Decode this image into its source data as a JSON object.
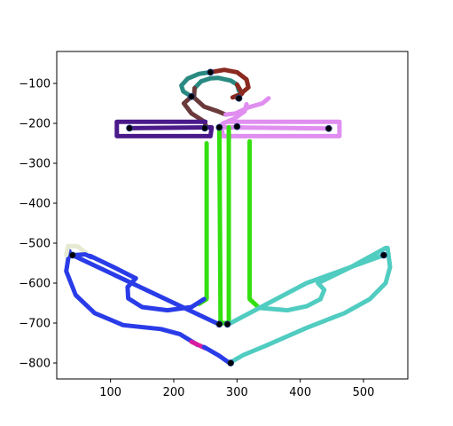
{
  "chart_data": {
    "type": "line",
    "title": "",
    "xlabel": "",
    "ylabel": "",
    "xlim": [
      15,
      570
    ],
    "ylim": [
      -840,
      -20
    ],
    "x_ticks": [
      100,
      200,
      300,
      400,
      500
    ],
    "x_tick_labels": [
      "100",
      "200",
      "300",
      "400",
      "500"
    ],
    "y_ticks": [
      -100,
      -200,
      -300,
      -400,
      -500,
      -600,
      -700,
      -800
    ],
    "y_tick_labels": [
      "−100",
      "−200",
      "−300",
      "−400",
      "−500",
      "−600",
      "−700",
      "−800"
    ],
    "grid": false,
    "legend": "none",
    "series": [
      {
        "color": "#2a8a82",
        "points": [
          [
            258,
            -72
          ],
          [
            240,
            -76
          ],
          [
            222,
            -88
          ],
          [
            212,
            -105
          ],
          [
            215,
            -120
          ],
          [
            228,
            -133
          ]
        ]
      },
      {
        "color": "#8b2a20",
        "points": [
          [
            258,
            -72
          ],
          [
            280,
            -66
          ],
          [
            300,
            -72
          ],
          [
            315,
            -90
          ],
          [
            318,
            -110
          ],
          [
            305,
            -127
          ],
          [
            293,
            -135
          ]
        ]
      },
      {
        "color": "#2a8a82",
        "points": [
          [
            233,
            -112
          ],
          [
            243,
            -95
          ],
          [
            258,
            -87
          ],
          [
            270,
            -86
          ],
          [
            290,
            -93
          ],
          [
            300,
            -103
          ],
          [
            303,
            -118
          ]
        ]
      },
      {
        "color": "#8b2a20",
        "points": [
          [
            300,
            -103
          ],
          [
            308,
            -125
          ],
          [
            300,
            -137
          ]
        ]
      },
      {
        "color": "#6b3a3a",
        "points": [
          [
            228,
            -133
          ],
          [
            216,
            -150
          ],
          [
            228,
            -175
          ],
          [
            248,
            -195
          ],
          [
            252,
            -210
          ]
        ]
      },
      {
        "color": "#6b3a3a",
        "points": [
          [
            233,
            -112
          ],
          [
            232,
            -135
          ],
          [
            248,
            -158
          ],
          [
            270,
            -170
          ],
          [
            282,
            -178
          ]
        ]
      },
      {
        "color": "#e08ef0",
        "points": [
          [
            282,
            -178
          ],
          [
            298,
            -175
          ],
          [
            318,
            -160
          ],
          [
            340,
            -150
          ],
          [
            350,
            -137
          ]
        ]
      },
      {
        "color": "#e08ef0",
        "points": [
          [
            315,
            -152
          ],
          [
            312,
            -170
          ],
          [
            296,
            -188
          ],
          [
            278,
            -200
          ],
          [
            270,
            -212
          ]
        ]
      },
      {
        "color": "#4a1a8a",
        "points": [
          [
            250,
            -196
          ],
          [
            110,
            -196
          ],
          [
            110,
            -232
          ],
          [
            258,
            -232
          ],
          [
            260,
            -210
          ],
          [
            130,
            -212
          ]
        ]
      },
      {
        "color": "#e08ef0",
        "points": [
          [
            285,
            -196
          ],
          [
            462,
            -196
          ],
          [
            462,
            -232
          ],
          [
            278,
            -232
          ],
          [
            275,
            -210
          ],
          [
            445,
            -213
          ]
        ]
      },
      {
        "color": "#33e00f",
        "points": [
          [
            252,
            -250
          ],
          [
            252,
            -640
          ],
          [
            240,
            -652
          ]
        ]
      },
      {
        "color": "#33e00f",
        "points": [
          [
            272,
            -210
          ],
          [
            274,
            -700
          ],
          [
            285,
            -700
          ]
        ]
      },
      {
        "color": "#33e00f",
        "points": [
          [
            287,
            -210
          ],
          [
            287,
            -700
          ]
        ]
      },
      {
        "color": "#33e00f",
        "points": [
          [
            320,
            -245
          ],
          [
            320,
            -640
          ],
          [
            335,
            -662
          ]
        ]
      },
      {
        "color": "#2a3ce8",
        "points": [
          [
            248,
            -640
          ],
          [
            228,
            -660
          ],
          [
            190,
            -668
          ],
          [
            150,
            -660
          ],
          [
            128,
            -638
          ],
          [
            127,
            -610
          ],
          [
            140,
            -588
          ]
        ]
      },
      {
        "color": "#2a3ce8",
        "points": [
          [
            140,
            -588
          ],
          [
            105,
            -560
          ],
          [
            68,
            -532
          ]
        ]
      },
      {
        "color": "#2a3ce8",
        "points": [
          [
            40,
            -530
          ],
          [
            270,
            -702
          ]
        ]
      },
      {
        "color": "#2a3ce8",
        "points": [
          [
            35,
            -520
          ],
          [
            30,
            -570
          ],
          [
            45,
            -630
          ],
          [
            75,
            -675
          ],
          [
            120,
            -705
          ],
          [
            180,
            -715
          ],
          [
            210,
            -728
          ],
          [
            238,
            -755
          ]
        ]
      },
      {
        "color": "#d81ca0",
        "points": [
          [
            228,
            -747
          ],
          [
            250,
            -763
          ]
        ]
      },
      {
        "color": "#2a3ce8",
        "points": [
          [
            248,
            -760
          ],
          [
            272,
            -782
          ],
          [
            288,
            -800
          ]
        ]
      },
      {
        "color": "#50ccc0",
        "points": [
          [
            288,
            -800
          ],
          [
            310,
            -780
          ],
          [
            345,
            -757
          ],
          [
            410,
            -712
          ],
          [
            470,
            -675
          ],
          [
            510,
            -640
          ],
          [
            535,
            -600
          ],
          [
            542,
            -560
          ],
          [
            538,
            -512
          ]
        ]
      },
      {
        "color": "#50ccc0",
        "points": [
          [
            335,
            -662
          ],
          [
            380,
            -668
          ],
          [
            410,
            -658
          ],
          [
            432,
            -640
          ],
          [
            438,
            -617
          ],
          [
            428,
            -600
          ]
        ]
      },
      {
        "color": "#50ccc0",
        "points": [
          [
            428,
            -600
          ],
          [
            480,
            -560
          ],
          [
            535,
            -512
          ]
        ]
      },
      {
        "color": "#50ccc0",
        "points": [
          [
            532,
            -530
          ],
          [
            410,
            -600
          ],
          [
            290,
            -700
          ]
        ]
      },
      {
        "color": "#e6ead2",
        "points": [
          [
            30,
            -530
          ],
          [
            33,
            -507
          ],
          [
            48,
            -508
          ],
          [
            62,
            -525
          ]
        ]
      },
      {
        "color": "#2a3ce8",
        "points": [
          [
            40,
            -530
          ],
          [
            60,
            -528
          ],
          [
            70,
            -535
          ]
        ]
      }
    ],
    "markers": [
      [
        258,
        -72
      ],
      [
        228,
        -133
      ],
      [
        303,
        -137
      ],
      [
        130,
        -212
      ],
      [
        249,
        -212
      ],
      [
        272,
        -210
      ],
      [
        300,
        -208
      ],
      [
        445,
        -213
      ],
      [
        40,
        -530
      ],
      [
        532,
        -530
      ],
      [
        272,
        -703
      ],
      [
        285,
        -703
      ],
      [
        290,
        -800
      ]
    ],
    "marker_color": "#000000",
    "marker_edge_color": "#1f3d8a"
  }
}
